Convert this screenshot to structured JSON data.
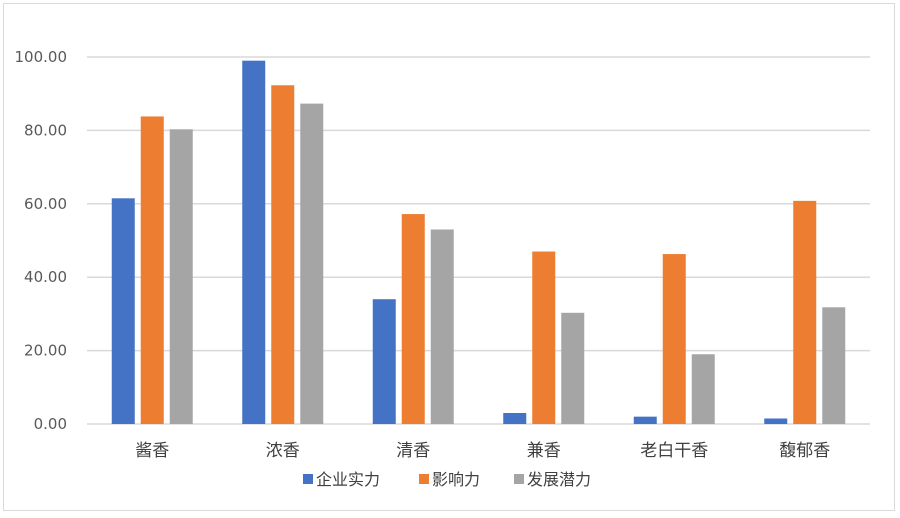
{
  "chart_data": {
    "type": "bar",
    "categories": [
      "酱香",
      "浓香",
      "清香",
      "兼香",
      "老白干香",
      "馥郁香"
    ],
    "series": [
      {
        "name": "企业实力",
        "color": "#4472c4",
        "values": [
          61.5,
          99.0,
          34.0,
          3.0,
          2.0,
          1.5
        ]
      },
      {
        "name": "影响力",
        "color": "#ed7d31",
        "values": [
          83.8,
          92.3,
          57.2,
          47.0,
          46.3,
          60.8
        ]
      },
      {
        "name": "发展潜力",
        "color": "#a5a5a5",
        "values": [
          80.3,
          87.3,
          53.0,
          30.3,
          19.0,
          31.8
        ]
      }
    ],
    "ylim": [
      0,
      100
    ],
    "yticks": [
      "0.00",
      "20.00",
      "40.00",
      "60.00",
      "80.00",
      "100.00"
    ],
    "ytick_values": [
      0,
      20,
      40,
      60,
      80,
      100
    ],
    "grid": true,
    "legend_position": "bottom",
    "gridline_color": "#d9d9d9"
  }
}
